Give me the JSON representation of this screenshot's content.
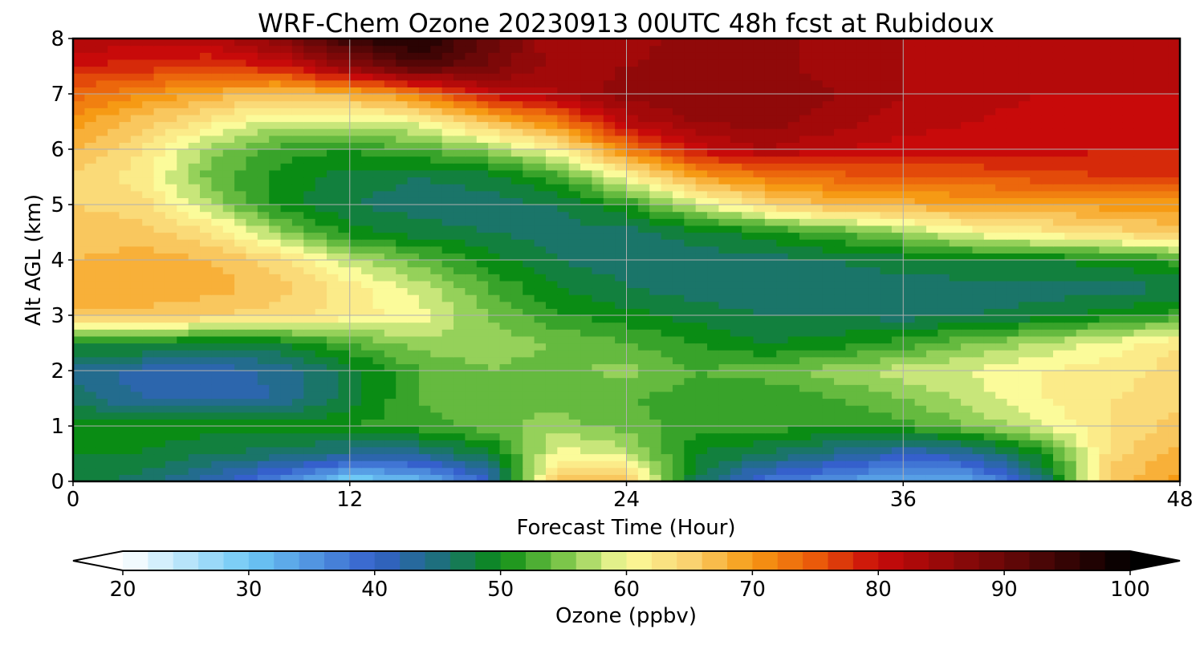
{
  "chart_data": {
    "type": "heatmap",
    "title": "WRF-Chem Ozone  20230913 00UTC 48h fcst at Rubidoux",
    "xlabel": "Forecast Time (Hour)",
    "ylabel": "Alt AGL (km)",
    "xlim": [
      0,
      48
    ],
    "ylim": [
      0,
      8
    ],
    "x_ticks": [
      "0",
      "12",
      "24",
      "36",
      "48"
    ],
    "y_ticks": [
      "0",
      "1",
      "2",
      "3",
      "4",
      "5",
      "6",
      "7",
      "8"
    ],
    "grid": true,
    "x": [
      0,
      3,
      6,
      9,
      12,
      15,
      18,
      21,
      24,
      27,
      30,
      33,
      36,
      39,
      42,
      45,
      48
    ],
    "y": [
      0,
      0.5,
      1,
      1.5,
      2,
      2.5,
      3,
      3.5,
      4,
      4.5,
      5,
      5.5,
      6,
      6.5,
      7,
      7.5,
      8
    ],
    "z_by_altitude": [
      [
        48,
        46,
        42,
        36,
        28,
        31,
        40,
        66,
        66,
        47,
        38,
        35,
        32,
        33,
        44,
        66,
        70
      ],
      [
        49,
        49,
        47,
        46,
        44,
        44,
        48,
        60,
        58,
        49,
        47,
        44,
        41,
        43,
        50,
        64,
        68
      ],
      [
        50,
        50,
        50,
        50,
        51,
        52,
        54,
        56,
        54,
        52,
        52,
        51,
        52,
        55,
        59,
        63,
        66
      ],
      [
        46,
        43,
        42,
        43,
        48,
        53,
        55,
        54,
        53,
        52,
        51,
        53,
        55,
        58,
        61,
        63,
        64
      ],
      [
        44,
        42,
        41,
        44,
        48,
        53,
        55,
        54,
        56,
        53,
        54,
        56,
        58,
        59,
        61,
        62,
        64
      ],
      [
        49,
        50,
        48,
        49,
        53,
        56,
        56,
        55,
        53,
        51,
        49,
        50,
        52,
        55,
        57,
        60,
        63
      ],
      [
        66,
        66,
        65,
        64,
        62,
        60,
        55,
        51,
        50,
        48,
        47,
        47,
        46,
        47,
        48,
        50,
        52
      ],
      [
        69,
        69,
        68,
        66,
        62,
        58,
        53,
        49,
        47,
        46,
        46,
        46,
        46,
        46,
        46,
        46,
        47
      ],
      [
        67,
        68,
        67,
        64,
        58,
        54,
        50,
        47,
        46,
        46,
        46,
        47,
        48,
        49,
        49,
        50,
        52
      ],
      [
        66,
        66,
        63,
        56,
        50,
        48,
        47,
        46,
        46,
        48,
        50,
        53,
        56,
        60,
        62,
        64,
        66
      ],
      [
        65,
        64,
        57,
        50,
        47,
        46,
        46,
        47,
        51,
        58,
        64,
        67,
        68,
        69,
        69,
        70,
        70
      ],
      [
        65,
        62,
        54,
        50,
        48,
        47,
        48,
        52,
        60,
        69,
        72,
        74,
        75,
        75,
        76,
        77,
        77
      ],
      [
        67,
        63,
        56,
        52,
        51,
        53,
        56,
        61,
        72,
        80,
        83,
        81,
        80,
        80,
        80,
        79,
        79
      ],
      [
        70,
        66,
        62,
        58,
        58,
        60,
        66,
        72,
        82,
        85,
        86,
        84,
        82,
        81,
        80,
        80,
        79
      ],
      [
        74,
        71,
        68,
        66,
        68,
        72,
        80,
        83,
        86,
        87,
        87,
        85,
        83,
        82,
        81,
        81,
        81
      ],
      [
        79,
        78,
        77,
        79,
        86,
        92,
        89,
        84,
        85,
        86,
        86,
        84,
        83,
        82,
        81,
        81,
        81
      ],
      [
        83,
        82,
        82,
        87,
        95,
        98,
        90,
        83,
        84,
        86,
        86,
        84,
        83,
        82,
        81,
        81,
        81
      ]
    ],
    "colorbar": {
      "label": "Ozone  (ppbv)",
      "min": 20,
      "max": 100,
      "ticks": [
        "20",
        "30",
        "40",
        "50",
        "60",
        "70",
        "80",
        "90",
        "100"
      ],
      "extend": "both",
      "stops": [
        [
          20,
          "#ffffff"
        ],
        [
          30,
          "#6ec9f5"
        ],
        [
          40,
          "#3560cc"
        ],
        [
          45,
          "#1e6f7e"
        ],
        [
          50,
          "#0a8c14"
        ],
        [
          55,
          "#7cc64a"
        ],
        [
          60,
          "#fbfb9a"
        ],
        [
          65,
          "#fad270"
        ],
        [
          70,
          "#f69a14"
        ],
        [
          75,
          "#ea5a0a"
        ],
        [
          80,
          "#c80a0a"
        ],
        [
          90,
          "#6a0808"
        ],
        [
          100,
          "#000000"
        ]
      ]
    }
  }
}
